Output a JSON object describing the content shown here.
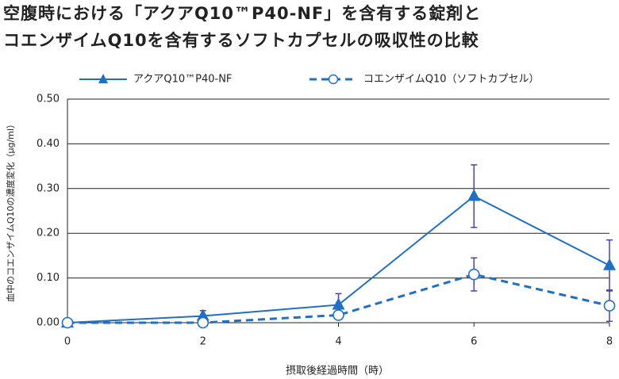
{
  "chart_data": {
    "type": "line",
    "title": [
      "空腹時における「アクアQ10™P40-NF」を含有する錠剤と",
      "コエンザイムQ10を含有するソフトカプセルの吸収性の比較"
    ],
    "x_label": "摂取後経過時間（時）",
    "y_label": "血中のコエンザイムQ10の濃度変化（μg/ml）",
    "x": [
      0,
      2,
      4,
      6,
      8
    ],
    "series": [
      {
        "name": "アクアQ10™P40-NF",
        "color": "#1f6fc5",
        "marker": "triangle",
        "dash": false,
        "values": [
          0,
          0.015,
          0.04,
          0.283,
          0.128
        ],
        "errors": [
          0,
          0.012,
          0.025,
          0.07,
          0.057
        ]
      },
      {
        "name": "コエンザイムQ10（ソフトカプセル）",
        "color": "#1f6fc5",
        "marker": "circle",
        "dash": true,
        "values": [
          0,
          0,
          0.017,
          0.108,
          0.038
        ],
        "errors": [
          0,
          0,
          0.005,
          0.037,
          0.035
        ]
      }
    ],
    "error_color": "#4a3fb5",
    "xlim": [
      0,
      8
    ],
    "xticks": [
      0,
      2,
      4,
      6,
      8
    ],
    "ylim": [
      0,
      0.5
    ],
    "yticks": [
      {
        "value": 0,
        "label": "0.00"
      },
      {
        "value": 0.1,
        "label": "0.10"
      },
      {
        "value": 0.2,
        "label": "0.20"
      },
      {
        "value": 0.3,
        "label": "0.30"
      },
      {
        "value": 0.4,
        "label": "0.40"
      },
      {
        "value": 0.5,
        "label": "0.50"
      }
    ],
    "grid": true
  }
}
